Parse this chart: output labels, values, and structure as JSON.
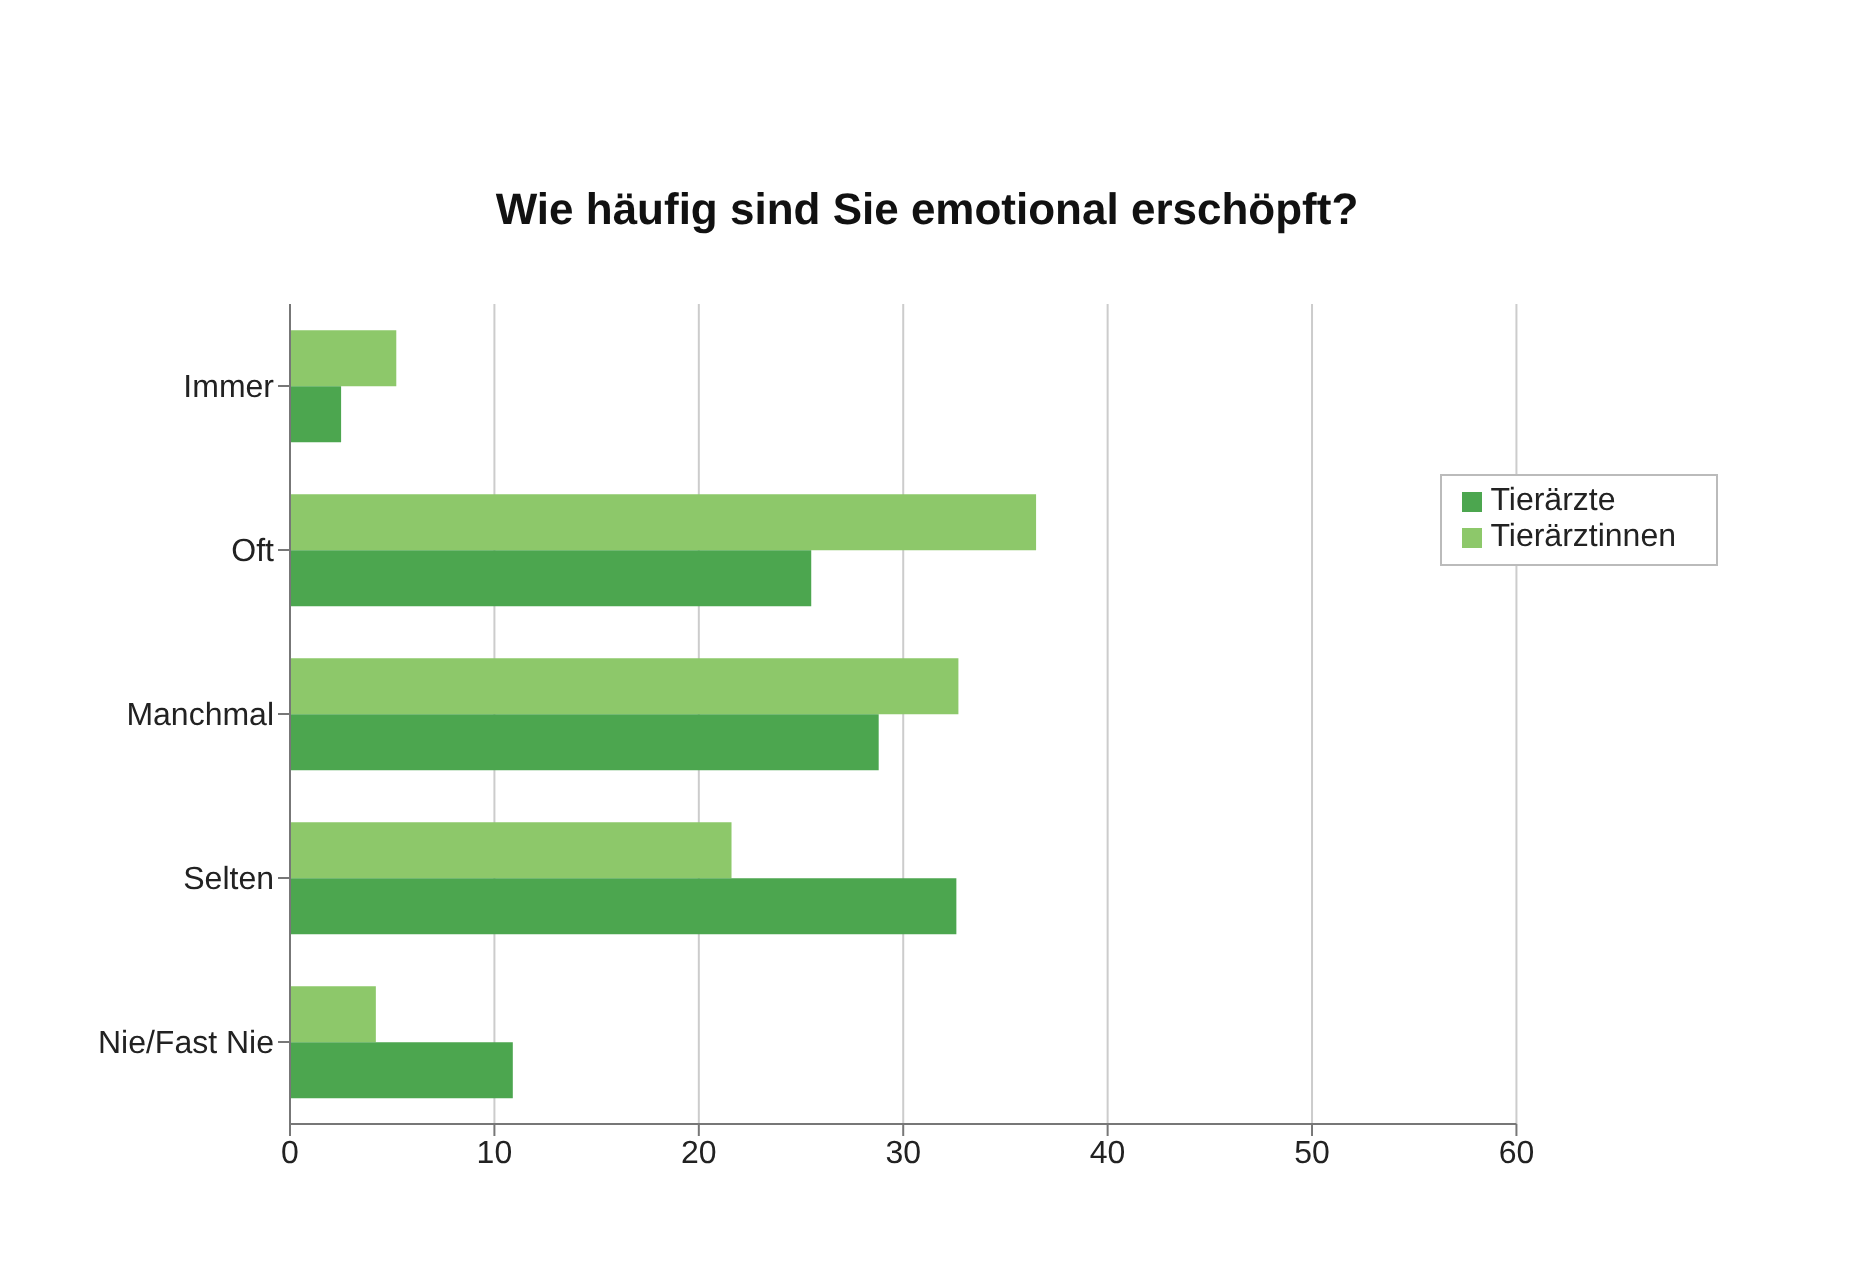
{
  "chart_data": {
    "type": "bar",
    "orientation": "horizontal",
    "title": "Wie häufig sind Sie emotional erschöpft?",
    "categories": [
      "Immer",
      "Oft",
      "Manchmal",
      "Selten",
      "Nie/Fast Nie"
    ],
    "series": [
      {
        "name": "Tierärztinnen",
        "color": "#8dc86a",
        "values": [
          5.2,
          36.5,
          32.7,
          21.6,
          4.2
        ]
      },
      {
        "name": "Tierärzte",
        "color": "#4ca64f",
        "values": [
          2.5,
          25.5,
          28.8,
          32.6,
          10.9
        ]
      }
    ],
    "xlim": [
      0,
      60
    ],
    "xticks": [
      0,
      10,
      20,
      30,
      40,
      50,
      60
    ],
    "grid": "x",
    "legend": "top right"
  }
}
